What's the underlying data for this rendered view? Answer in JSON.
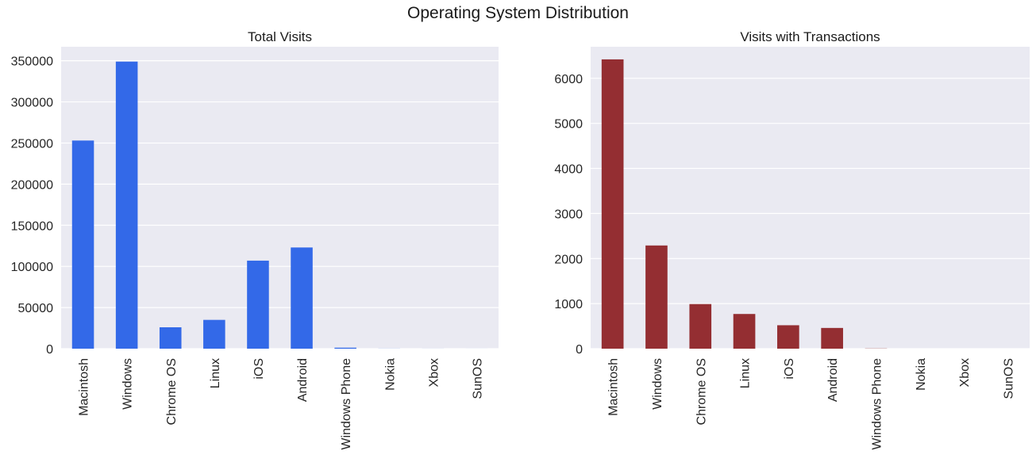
{
  "suptitle": "Operating System Distribution",
  "chart_data": [
    {
      "type": "bar",
      "title": "Total Visits",
      "xlabel": "",
      "ylabel": "",
      "categories": [
        "Macintosh",
        "Windows",
        "Chrome OS",
        "Linux",
        "iOS",
        "Android",
        "Windows Phone",
        "Nokia",
        "Xbox",
        "SunOS"
      ],
      "values": [
        253000,
        349000,
        26000,
        35000,
        107000,
        123000,
        1200,
        100,
        50,
        20
      ],
      "ylim": [
        0,
        367000
      ],
      "yticks": [
        0,
        50000,
        100000,
        150000,
        200000,
        250000,
        300000,
        350000
      ],
      "color": "#2f66e8",
      "grid": true
    },
    {
      "type": "bar",
      "title": "Visits with Transactions",
      "xlabel": "",
      "ylabel": "",
      "categories": [
        "Macintosh",
        "Windows",
        "Chrome OS",
        "Linux",
        "iOS",
        "Android",
        "Windows Phone",
        "Nokia",
        "Xbox",
        "SunOS"
      ],
      "values": [
        6420,
        2290,
        990,
        770,
        520,
        460,
        4,
        0,
        0,
        0
      ],
      "ylim": [
        0,
        6700
      ],
      "yticks": [
        0,
        1000,
        2000,
        3000,
        4000,
        5000,
        6000
      ],
      "color": "#922a2e",
      "grid": true
    }
  ]
}
